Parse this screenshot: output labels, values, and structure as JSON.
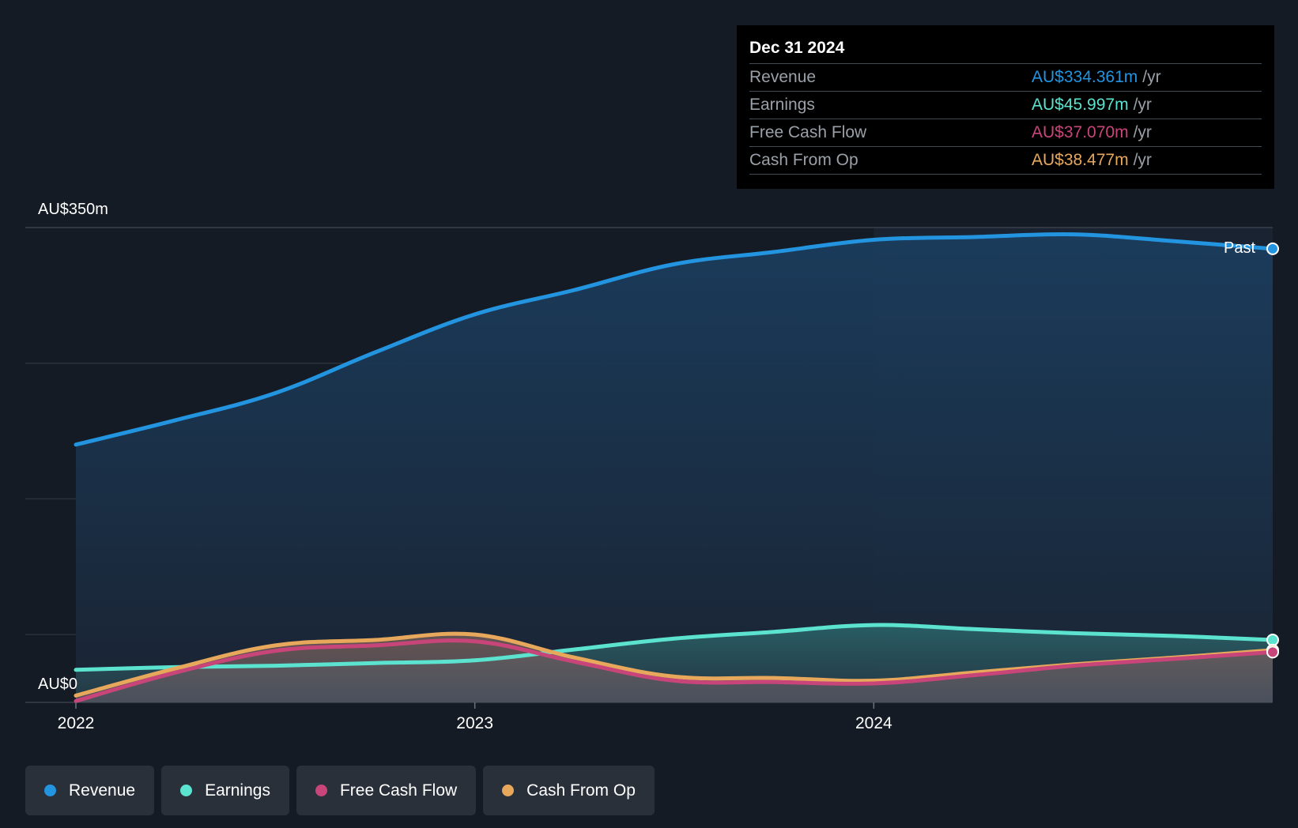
{
  "chart_data": {
    "type": "area",
    "y_max_label": "AU$350m",
    "y_min_label": "AU$0",
    "ylim": [
      0,
      350
    ],
    "x_ticks": [
      {
        "label": "2022",
        "value": 2022.0
      },
      {
        "label": "2023",
        "value": 2023.0
      },
      {
        "label": "2024",
        "value": 2024.0
      }
    ],
    "past_label": "Past",
    "highlight_start": 2024.0,
    "series": [
      {
        "name": "Revenue",
        "color": "#2394df",
        "x": [
          2022.0,
          2022.25,
          2022.5,
          2022.75,
          2023.0,
          2023.25,
          2023.5,
          2023.75,
          2024.0,
          2024.25,
          2024.5,
          2024.75,
          2025.0
        ],
        "values": [
          190,
          208,
          228,
          258,
          286,
          304,
          323,
          332,
          341,
          343,
          345,
          340,
          334.361
        ]
      },
      {
        "name": "Earnings",
        "color": "#5ce3d0",
        "x": [
          2022.0,
          2022.25,
          2022.5,
          2022.75,
          2023.0,
          2023.25,
          2023.5,
          2023.75,
          2024.0,
          2024.25,
          2024.5,
          2024.75,
          2025.0
        ],
        "values": [
          24,
          26,
          27,
          29,
          31,
          39,
          47,
          52,
          57,
          54,
          51,
          49,
          45.997
        ]
      },
      {
        "name": "Free Cash Flow",
        "color": "#c8457a",
        "x": [
          2022.0,
          2022.25,
          2022.5,
          2022.75,
          2023.0,
          2023.25,
          2023.5,
          2023.75,
          2024.0,
          2024.25,
          2024.5,
          2024.75,
          2025.0
        ],
        "values": [
          1,
          22,
          38,
          42,
          45,
          30,
          16,
          15,
          14,
          20,
          27,
          32,
          37.07
        ]
      },
      {
        "name": "Cash From Op",
        "color": "#e8a85c",
        "x": [
          2022.0,
          2022.25,
          2022.5,
          2022.75,
          2023.0,
          2023.25,
          2023.5,
          2023.75,
          2024.0,
          2024.25,
          2024.5,
          2024.75,
          2025.0
        ],
        "values": [
          5,
          25,
          42,
          46,
          50,
          33,
          19,
          18,
          16,
          22,
          28,
          33,
          38.477
        ]
      }
    ]
  },
  "tooltip": {
    "date": "Dec 31 2024",
    "rows": [
      {
        "label": "Revenue",
        "value": "AU$334.361m",
        "unit": "/yr",
        "color": "#2394df"
      },
      {
        "label": "Earnings",
        "value": "AU$45.997m",
        "unit": "/yr",
        "color": "#5ce3d0"
      },
      {
        "label": "Free Cash Flow",
        "value": "AU$37.070m",
        "unit": "/yr",
        "color": "#c8457a"
      },
      {
        "label": "Cash From Op",
        "value": "AU$38.477m",
        "unit": "/yr",
        "color": "#e8a85c"
      }
    ]
  },
  "legend": [
    {
      "label": "Revenue",
      "color": "#2394df"
    },
    {
      "label": "Earnings",
      "color": "#5ce3d0"
    },
    {
      "label": "Free Cash Flow",
      "color": "#c8457a"
    },
    {
      "label": "Cash From Op",
      "color": "#e8a85c"
    }
  ]
}
